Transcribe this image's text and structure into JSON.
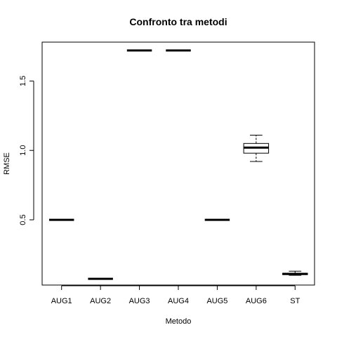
{
  "chart_data": {
    "type": "box",
    "title": "Confronto tra metodi",
    "xlabel": "Metodo",
    "ylabel": "RMSE",
    "categories": [
      "AUG1",
      "AUG2",
      "AUG3",
      "AUG4",
      "AUG5",
      "AUG6",
      "ST"
    ],
    "yticks": [
      "0.5",
      "1.0",
      "1.5"
    ],
    "ylim": [
      0.03,
      1.78
    ],
    "boxes": [
      {
        "category": "AUG1",
        "min": 0.5,
        "q1": 0.5,
        "median": 0.5,
        "q3": 0.5,
        "max": 0.5
      },
      {
        "category": "AUG2",
        "min": 0.075,
        "q1": 0.075,
        "median": 0.075,
        "q3": 0.075,
        "max": 0.075
      },
      {
        "category": "AUG3",
        "min": 1.72,
        "q1": 1.72,
        "median": 1.72,
        "q3": 1.72,
        "max": 1.72
      },
      {
        "category": "AUG4",
        "min": 1.72,
        "q1": 1.72,
        "median": 1.72,
        "q3": 1.72,
        "max": 1.72
      },
      {
        "category": "AUG5",
        "min": 0.5,
        "q1": 0.5,
        "median": 0.5,
        "q3": 0.5,
        "max": 0.5
      },
      {
        "category": "AUG6",
        "min": 0.92,
        "q1": 0.98,
        "median": 1.02,
        "q3": 1.05,
        "max": 1.11
      },
      {
        "category": "ST",
        "min": 0.1,
        "q1": 0.105,
        "median": 0.11,
        "q3": 0.115,
        "max": 0.13
      }
    ],
    "grid": false,
    "legend": false
  }
}
